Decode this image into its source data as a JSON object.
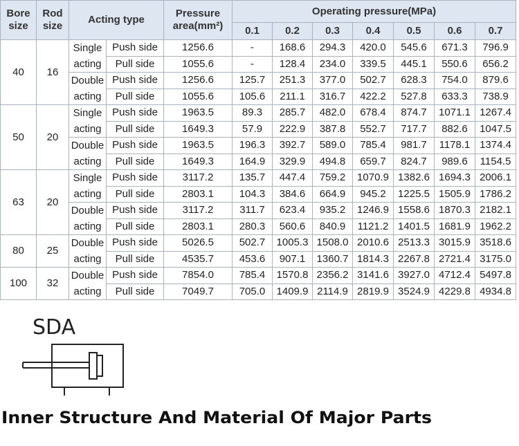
{
  "header": {
    "bore": "Bore size",
    "rod": "Rod size",
    "acting": "Acting type",
    "area": "Pressure area(mm²)",
    "operating": "Operating pressure(MPa)",
    "pressures": [
      "0.1",
      "0.2",
      "0.3",
      "0.4",
      "0.5",
      "0.6",
      "0.7"
    ]
  },
  "groups": [
    {
      "bore": "40",
      "rod": "16",
      "actings": [
        {
          "type": "Single acting",
          "rows": [
            {
              "side": "Push side",
              "area": "1256.6",
              "values": [
                "-",
                "168.6",
                "294.3",
                "420.0",
                "545.6",
                "671.3",
                "796.9"
              ]
            },
            {
              "side": "Pull side",
              "area": "1055.6",
              "values": [
                "-",
                "128.4",
                "234.0",
                "339.5",
                "445.1",
                "550.6",
                "656.2"
              ]
            }
          ]
        },
        {
          "type": "Double acting",
          "rows": [
            {
              "side": "Push side",
              "area": "1256.6",
              "values": [
                "125.7",
                "251.3",
                "377.0",
                "502.7",
                "628.3",
                "754.0",
                "879.6"
              ]
            },
            {
              "side": "Pull side",
              "area": "1055.6",
              "values": [
                "105.6",
                "211.1",
                "316.7",
                "422.2",
                "527.8",
                "633.3",
                "738.9"
              ]
            }
          ]
        }
      ]
    },
    {
      "bore": "50",
      "rod": "20",
      "actings": [
        {
          "type": "Single acting",
          "rows": [
            {
              "side": "Push side",
              "area": "1963.5",
              "values": [
                "89.3",
                "285.7",
                "482.0",
                "678.4",
                "874.7",
                "1071.1",
                "1267.4"
              ]
            },
            {
              "side": "Pull side",
              "area": "1649.3",
              "values": [
                "57.9",
                "222.9",
                "387.8",
                "552.7",
                "717.7",
                "882.6",
                "1047.5"
              ]
            }
          ]
        },
        {
          "type": "Double acting",
          "rows": [
            {
              "side": "Push side",
              "area": "1963.5",
              "values": [
                "196.3",
                "392.7",
                "589.0",
                "785.4",
                "981.7",
                "1178.1",
                "1374.4"
              ]
            },
            {
              "side": "Pull side",
              "area": "1649.3",
              "values": [
                "164.9",
                "329.9",
                "494.8",
                "659.7",
                "824.7",
                "989.6",
                "1154.5"
              ]
            }
          ]
        }
      ]
    },
    {
      "bore": "63",
      "rod": "20",
      "actings": [
        {
          "type": "Single acting",
          "rows": [
            {
              "side": "Push side",
              "area": "3117.2",
              "values": [
                "135.7",
                "447.4",
                "759.2",
                "1070.9",
                "1382.6",
                "1694.3",
                "2006.1"
              ]
            },
            {
              "side": "Pull side",
              "area": "2803.1",
              "values": [
                "104.3",
                "384.6",
                "664.9",
                "945.2",
                "1225.5",
                "1505.9",
                "1786.2"
              ]
            }
          ]
        },
        {
          "type": "Double acting",
          "rows": [
            {
              "side": "Push side",
              "area": "3117.2",
              "values": [
                "311.7",
                "623.4",
                "935.2",
                "1246.9",
                "1558.6",
                "1870.3",
                "2182.1"
              ]
            },
            {
              "side": "Pull side",
              "area": "2803.1",
              "values": [
                "280.3",
                "560.6",
                "840.9",
                "1121.2",
                "1401.5",
                "1681.9",
                "1962.2"
              ]
            }
          ]
        }
      ]
    },
    {
      "bore": "80",
      "rod": "25",
      "actings": [
        {
          "type": "Double acting",
          "rows": [
            {
              "side": "Push side",
              "area": "5026.5",
              "values": [
                "502.7",
                "1005.3",
                "1508.0",
                "2010.6",
                "2513.3",
                "3015.9",
                "3518.6"
              ]
            },
            {
              "side": "Pull side",
              "area": "4535.7",
              "values": [
                "453.6",
                "907.1",
                "1360.7",
                "1814.3",
                "2267.8",
                "2721.4",
                "3175.0"
              ]
            }
          ]
        }
      ]
    },
    {
      "bore": "100",
      "rod": "32",
      "actings": [
        {
          "type": "Double acting",
          "rows": [
            {
              "side": "Push side",
              "area": "7854.0",
              "values": [
                "785.4",
                "1570.8",
                "2356.2",
                "3141.6",
                "3927.0",
                "4712.4",
                "5497.8"
              ]
            },
            {
              "side": "Pull side",
              "area": "7049.7",
              "values": [
                "705.0",
                "1409.9",
                "2114.9",
                "2819.9",
                "3524.9",
                "4229.8",
                "4934.8"
              ]
            }
          ]
        }
      ]
    }
  ],
  "model": "SDA",
  "title": "Inner Structure And Material Of Major Parts"
}
